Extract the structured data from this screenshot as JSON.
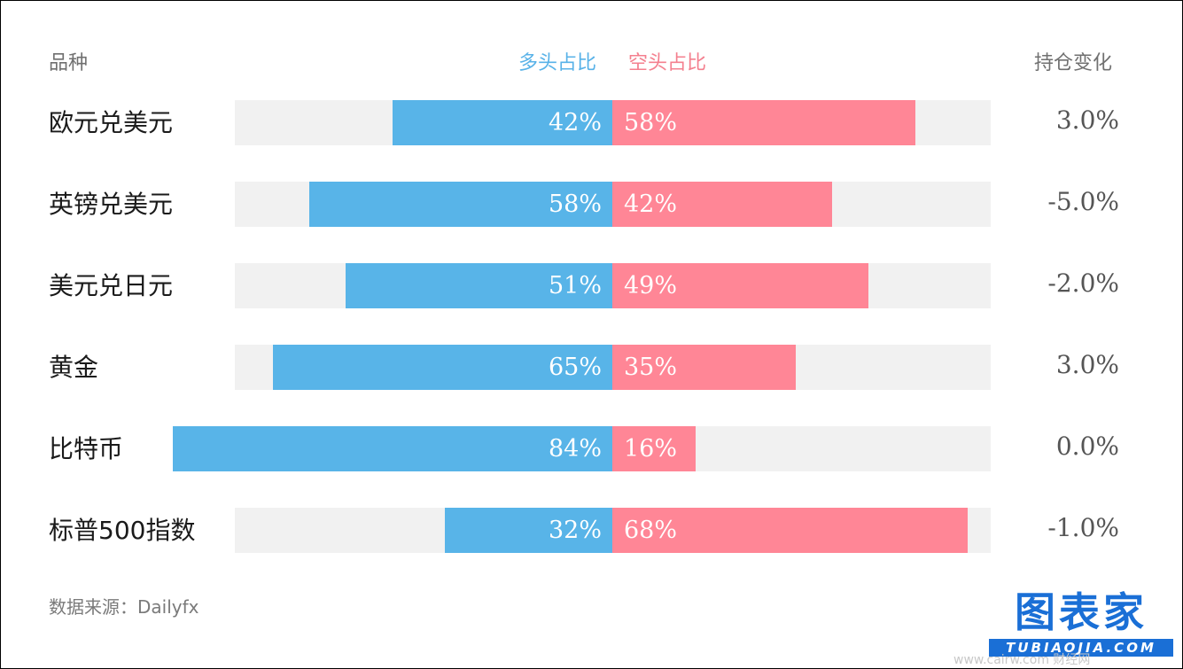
{
  "headers": {
    "category": "品种",
    "long": "多头占比",
    "short": "空头占比",
    "change": "持仓变化"
  },
  "chart_data": {
    "type": "bar",
    "categories": [
      "欧元兑美元",
      "英镑兑美元",
      "美元兑日元",
      "黄金",
      "比特币",
      "标普500指数"
    ],
    "series": [
      {
        "name": "多头占比",
        "values": [
          42,
          58,
          51,
          65,
          84,
          32
        ],
        "labels": [
          "42%",
          "58%",
          "51%",
          "65%",
          "84%",
          "32%"
        ],
        "color": "#58b4e8"
      },
      {
        "name": "空头占比",
        "values": [
          58,
          42,
          49,
          35,
          16,
          68
        ],
        "labels": [
          "58%",
          "42%",
          "49%",
          "35%",
          "16%",
          "68%"
        ],
        "color": "#ff8696"
      }
    ],
    "change_labels": [
      "3.0%",
      "-5.0%",
      "-2.0%",
      "3.0%",
      "0.0%",
      "-1.0%"
    ],
    "xlim": [
      -100,
      100
    ]
  },
  "source": "数据来源：Dailyfx",
  "logo": {
    "main": "图表家",
    "sub": "TUBIAOJIA.COM"
  },
  "watermark": "www.cairw.com 财经网"
}
